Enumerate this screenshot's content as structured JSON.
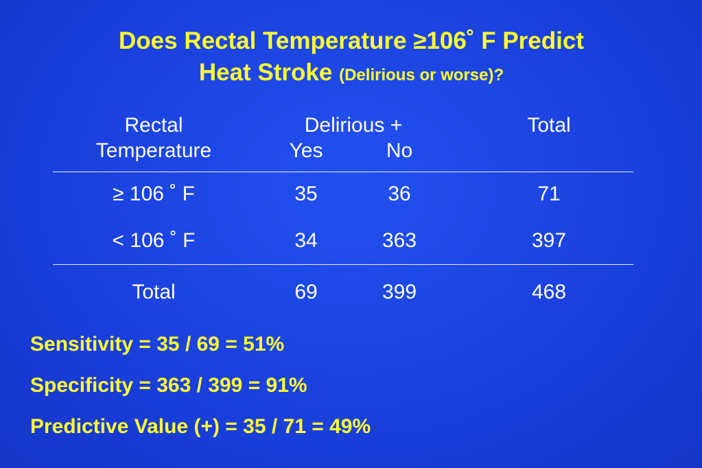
{
  "title": {
    "line1": "Does Rectal Temperature ≥106˚ F Predict",
    "line2": "Heat Stroke",
    "subtitle": "(Delirious or worse)?"
  },
  "table": {
    "header": {
      "first_col": [
        "Rectal",
        "Temperature"
      ],
      "group": "Delirious +",
      "yes": "Yes",
      "no": "No",
      "total": "Total"
    },
    "rows": [
      [
        "≥ 106 ˚ F",
        35,
        36,
        71
      ],
      [
        "< 106 ˚ F",
        34,
        363,
        397
      ]
    ],
    "total_row": [
      "Total",
      69,
      399,
      468
    ]
  },
  "results": [
    "Sensitivity = 35 / 69 = 51%",
    "Specificity = 363 / 399 = 91%",
    "Predictive Value (+) = 35 / 71 = 49%"
  ]
}
